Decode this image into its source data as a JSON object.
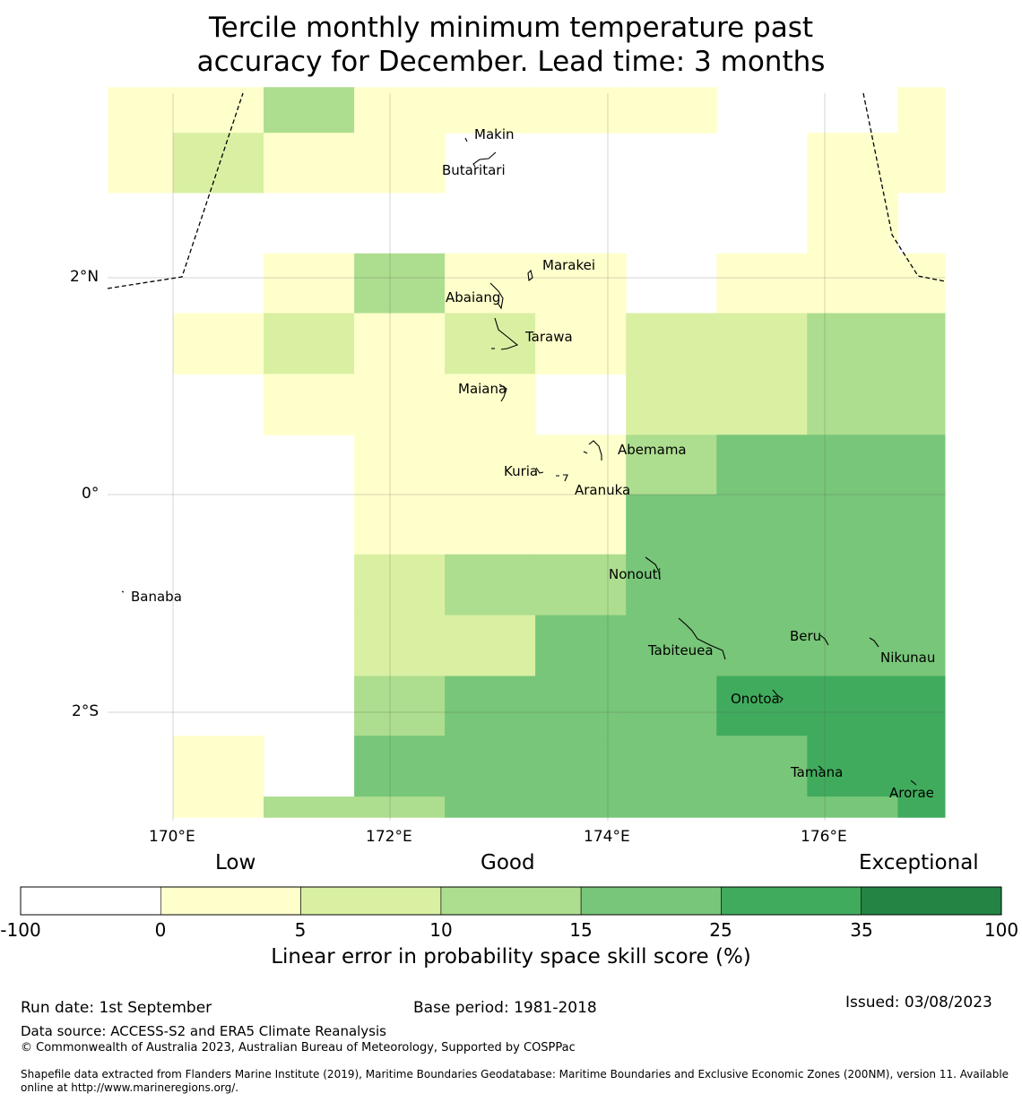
{
  "title_line1": "Tercile monthly minimum temperature past",
  "title_line2": "accuracy for December. Lead time: 3 months",
  "axes": {
    "lon_ticks": [
      "170°E",
      "172°E",
      "174°E",
      "176°E"
    ],
    "lat_ticks": [
      "2°N",
      "0°",
      "2°S"
    ]
  },
  "islands": {
    "makin": "Makin",
    "butaritari": "Butaritari",
    "marakei": "Marakei",
    "abaiang": "Abaiang",
    "tarawa": "Tarawa",
    "maiana": "Maiana",
    "abemama": "Abemama",
    "kuria": "Kuria",
    "aranuka": "Aranuka",
    "banaba": "Banaba",
    "nonouti": "Nonouti",
    "beru": "Beru",
    "tabiteuea": "Tabiteuea",
    "nikunau": "Nikunau",
    "onotoa": "Onotoa",
    "tamana": "Tamana",
    "arorae": "Arorae"
  },
  "legend": {
    "categories": [
      "Low",
      "Good",
      "Exceptional"
    ],
    "bins": [
      {
        "from": -100,
        "to": 0,
        "color": "#ffffff"
      },
      {
        "from": 0,
        "to": 5,
        "color": "#ffffcc"
      },
      {
        "from": 5,
        "to": 10,
        "color": "#d9f0a3"
      },
      {
        "from": 10,
        "to": 15,
        "color": "#addd8e"
      },
      {
        "from": 15,
        "to": 25,
        "color": "#78c679"
      },
      {
        "from": 25,
        "to": 35,
        "color": "#41ab5d"
      },
      {
        "from": 35,
        "to": 100,
        "color": "#238443"
      }
    ],
    "tick_labels": [
      "-100",
      "0",
      "5",
      "10",
      "15",
      "25",
      "35",
      "100"
    ],
    "title": "Linear error in probability space skill score (%)"
  },
  "skill_grid": {
    "lon_edges": [
      169.4,
      170.0,
      170.833,
      171.667,
      172.5,
      173.333,
      174.167,
      175.0,
      175.833,
      176.667,
      177.1
    ],
    "rows": [
      {
        "lat_top": 3.75,
        "lat_bottom": 3.33,
        "classes": [
          1,
          1,
          3,
          1,
          1,
          1,
          1,
          0,
          0,
          1
        ]
      },
      {
        "lat_top": 3.33,
        "lat_bottom": 2.78,
        "classes": [
          1,
          2,
          1,
          1,
          0,
          0,
          0,
          0,
          1,
          1
        ]
      },
      {
        "lat_top": 2.78,
        "lat_bottom": 2.22,
        "classes": [
          0,
          0,
          0,
          0,
          0,
          0,
          0,
          0,
          1,
          0
        ]
      },
      {
        "lat_top": 2.22,
        "lat_bottom": 1.67,
        "classes": [
          0,
          0,
          1,
          3,
          1,
          1,
          0,
          1,
          1,
          1
        ]
      },
      {
        "lat_top": 1.67,
        "lat_bottom": 1.11,
        "classes": [
          0,
          1,
          2,
          1,
          2,
          1,
          2,
          2,
          3,
          3
        ]
      },
      {
        "lat_top": 1.11,
        "lat_bottom": 0.55,
        "classes": [
          0,
          0,
          1,
          1,
          1,
          0,
          2,
          2,
          3,
          3
        ]
      },
      {
        "lat_top": 0.55,
        "lat_bottom": 0.0,
        "classes": [
          0,
          0,
          0,
          1,
          1,
          1,
          3,
          4,
          4,
          4
        ]
      },
      {
        "lat_top": 0.0,
        "lat_bottom": -0.55,
        "classes": [
          0,
          0,
          0,
          1,
          1,
          1,
          4,
          4,
          4,
          4
        ]
      },
      {
        "lat_top": -0.55,
        "lat_bottom": -1.11,
        "classes": [
          0,
          0,
          0,
          2,
          3,
          3,
          4,
          4,
          4,
          4
        ]
      },
      {
        "lat_top": -1.11,
        "lat_bottom": -1.67,
        "classes": [
          0,
          0,
          0,
          2,
          2,
          4,
          4,
          4,
          4,
          4
        ]
      },
      {
        "lat_top": -1.67,
        "lat_bottom": -2.22,
        "classes": [
          0,
          0,
          0,
          3,
          4,
          4,
          4,
          5,
          5,
          5
        ]
      },
      {
        "lat_top": -2.22,
        "lat_bottom": -2.78,
        "classes": [
          0,
          1,
          0,
          4,
          4,
          4,
          4,
          4,
          5,
          5
        ]
      },
      {
        "lat_top": -2.78,
        "lat_bottom": -2.97,
        "classes": [
          0,
          1,
          3,
          3,
          4,
          4,
          4,
          4,
          4,
          5
        ]
      }
    ]
  },
  "footer": {
    "run_date": "Run date: 1st September",
    "base_period": "Base period: 1981-2018",
    "issued": "Issued: 03/08/2023",
    "data_source": "Data source: ACCESS-S2 and ERA5 Climate Reanalysis",
    "copyright": "© Commonwealth of Australia 2023, Australian Bureau of Meteorology, Supported by COSPPac",
    "shapefile_line1": "Shapefile data extracted from Flanders Marine Institute (2019), Maritime Boundaries Geodatabase: Maritime Boundaries and Exclusive Economic Zones (200NM), version 11. Available",
    "shapefile_line2": "online at http://www.marineregions.org/."
  }
}
